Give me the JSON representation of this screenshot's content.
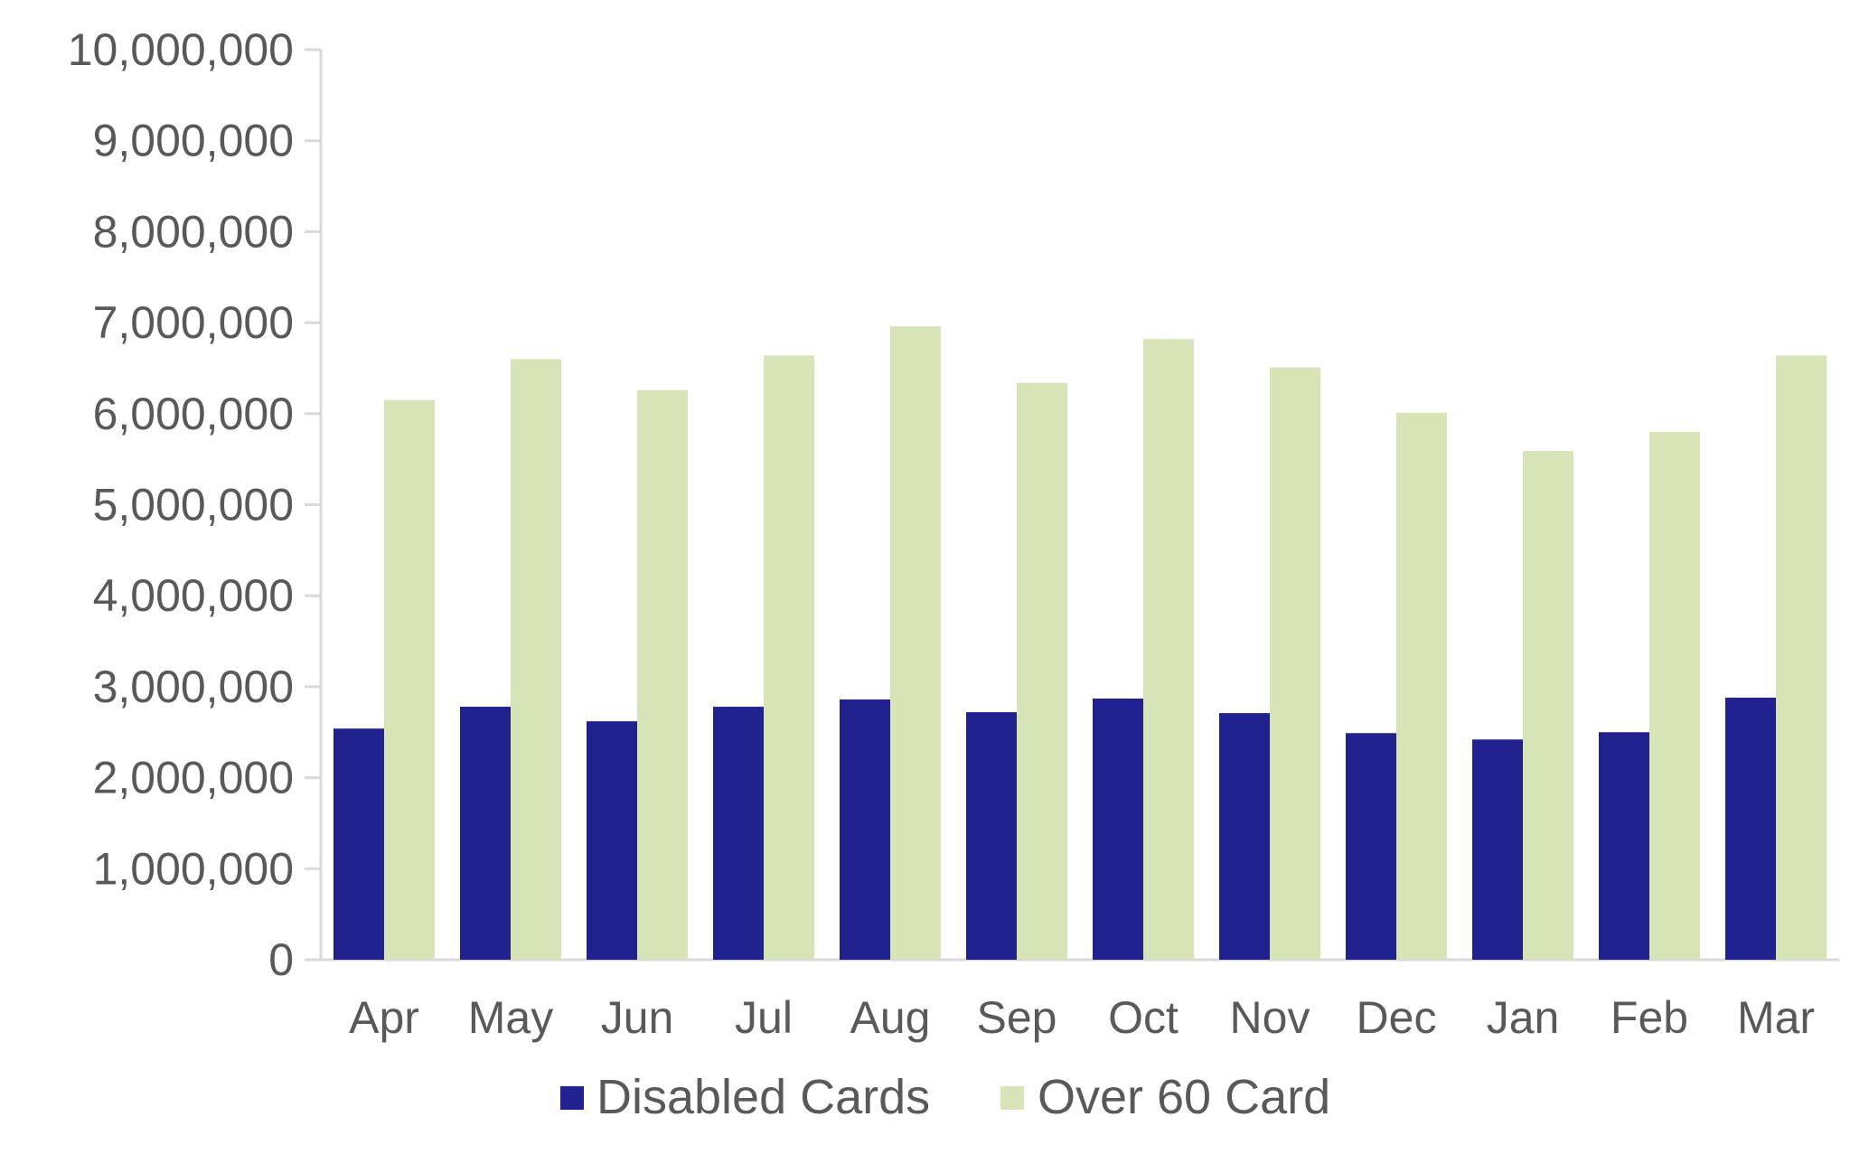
{
  "chart_data": {
    "type": "bar",
    "title": "",
    "xlabel": "",
    "ylabel": "",
    "categories": [
      "Apr",
      "May",
      "Jun",
      "Jul",
      "Aug",
      "Sep",
      "Oct",
      "Nov",
      "Dec",
      "Jan",
      "Feb",
      "Mar"
    ],
    "series": [
      {
        "name": "Disabled Cards",
        "color": "#21218F",
        "values": [
          2540000,
          2780000,
          2620000,
          2780000,
          2860000,
          2720000,
          2870000,
          2710000,
          2490000,
          2420000,
          2500000,
          2880000
        ]
      },
      {
        "name": "Over 60 Card",
        "color": "#D7E4B8",
        "values": [
          6150000,
          6600000,
          6260000,
          6640000,
          6960000,
          6340000,
          6820000,
          6510000,
          6010000,
          5590000,
          5800000,
          6640000
        ]
      }
    ],
    "ylim": [
      0,
      10000000
    ],
    "yticks": [
      0,
      1000000,
      2000000,
      3000000,
      4000000,
      5000000,
      6000000,
      7000000,
      8000000,
      9000000,
      10000000
    ],
    "ytick_labels": [
      "0",
      "1,000,000",
      "2,000,000",
      "3,000,000",
      "4,000,000",
      "5,000,000",
      "6,000,000",
      "7,000,000",
      "8,000,000",
      "9,000,000",
      "10,000,000"
    ],
    "grid": false,
    "legend_position": "bottom"
  },
  "colors": {
    "axis_line": "#D9D9D9",
    "text": "#595959"
  }
}
